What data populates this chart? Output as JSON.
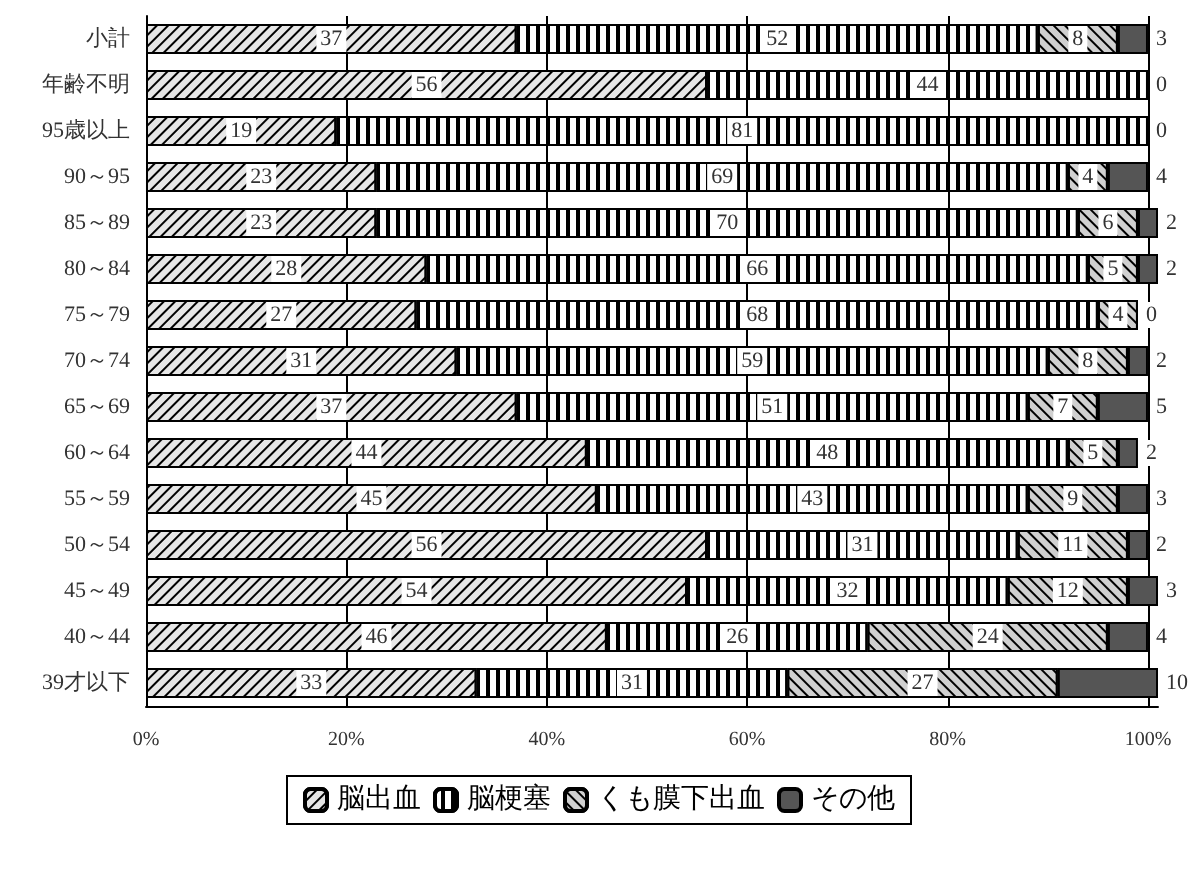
{
  "chart_data": {
    "type": "bar",
    "orientation": "horizontal",
    "stacked": true,
    "grid": "x",
    "legend": "bottom",
    "categories": [
      "小計",
      "年齢不明",
      "95歳以上",
      "90～95",
      "85～89",
      "80～84",
      "75～79",
      "70～74",
      "65～69",
      "60～64",
      "55～59",
      "50～54",
      "45～49",
      "40～44",
      "39才以下"
    ],
    "xlim": [
      0,
      101
    ],
    "xticks": [
      {
        "value": 0,
        "label": "0%"
      },
      {
        "value": 20,
        "label": "20%"
      },
      {
        "value": 40,
        "label": "40%"
      },
      {
        "value": 60,
        "label": "60%"
      },
      {
        "value": 80,
        "label": "80%"
      },
      {
        "value": 100,
        "label": "100%"
      }
    ],
    "series": [
      {
        "name": "脳出血",
        "color": "#e6e6e6",
        "values": [
          37,
          56,
          19,
          23,
          23,
          28,
          27,
          31,
          37,
          44,
          45,
          56,
          54,
          46,
          33
        ],
        "value_labels": [
          "37",
          "56",
          "19",
          "23",
          "23",
          "28",
          "27",
          "31",
          "37",
          "44",
          "45",
          "56",
          "54",
          "46",
          "33"
        ]
      },
      {
        "name": "脳梗塞",
        "color": "#ffffff",
        "values": [
          52,
          44,
          81,
          69,
          70,
          66,
          68,
          59,
          51,
          48,
          43,
          31,
          32,
          26,
          31
        ],
        "value_labels": [
          "52",
          "44",
          "81",
          "69",
          "70",
          "66",
          "68",
          "59",
          "51",
          "48",
          "43",
          "31",
          "32",
          "26",
          "31"
        ]
      },
      {
        "name": "くも膜下出血",
        "color": "#d0d0d0",
        "values": [
          8,
          0,
          0,
          4,
          6,
          5,
          4,
          8,
          7,
          5,
          9,
          11,
          12,
          24,
          27
        ],
        "value_labels": [
          "8",
          null,
          null,
          "4",
          "6",
          "5",
          "4",
          "8",
          "7",
          "5",
          "9",
          "11",
          "12",
          "24",
          "27"
        ]
      },
      {
        "name": "その他",
        "color": "#555555",
        "values": [
          3,
          0,
          0,
          4,
          2,
          2,
          0,
          2,
          5,
          2,
          3,
          2,
          3,
          4,
          10
        ],
        "value_labels": [
          "3",
          "0",
          "0",
          "4",
          "2",
          "2",
          "0",
          "2",
          "5",
          "2",
          "3",
          "2",
          "3",
          "4",
          "10"
        ]
      }
    ]
  }
}
